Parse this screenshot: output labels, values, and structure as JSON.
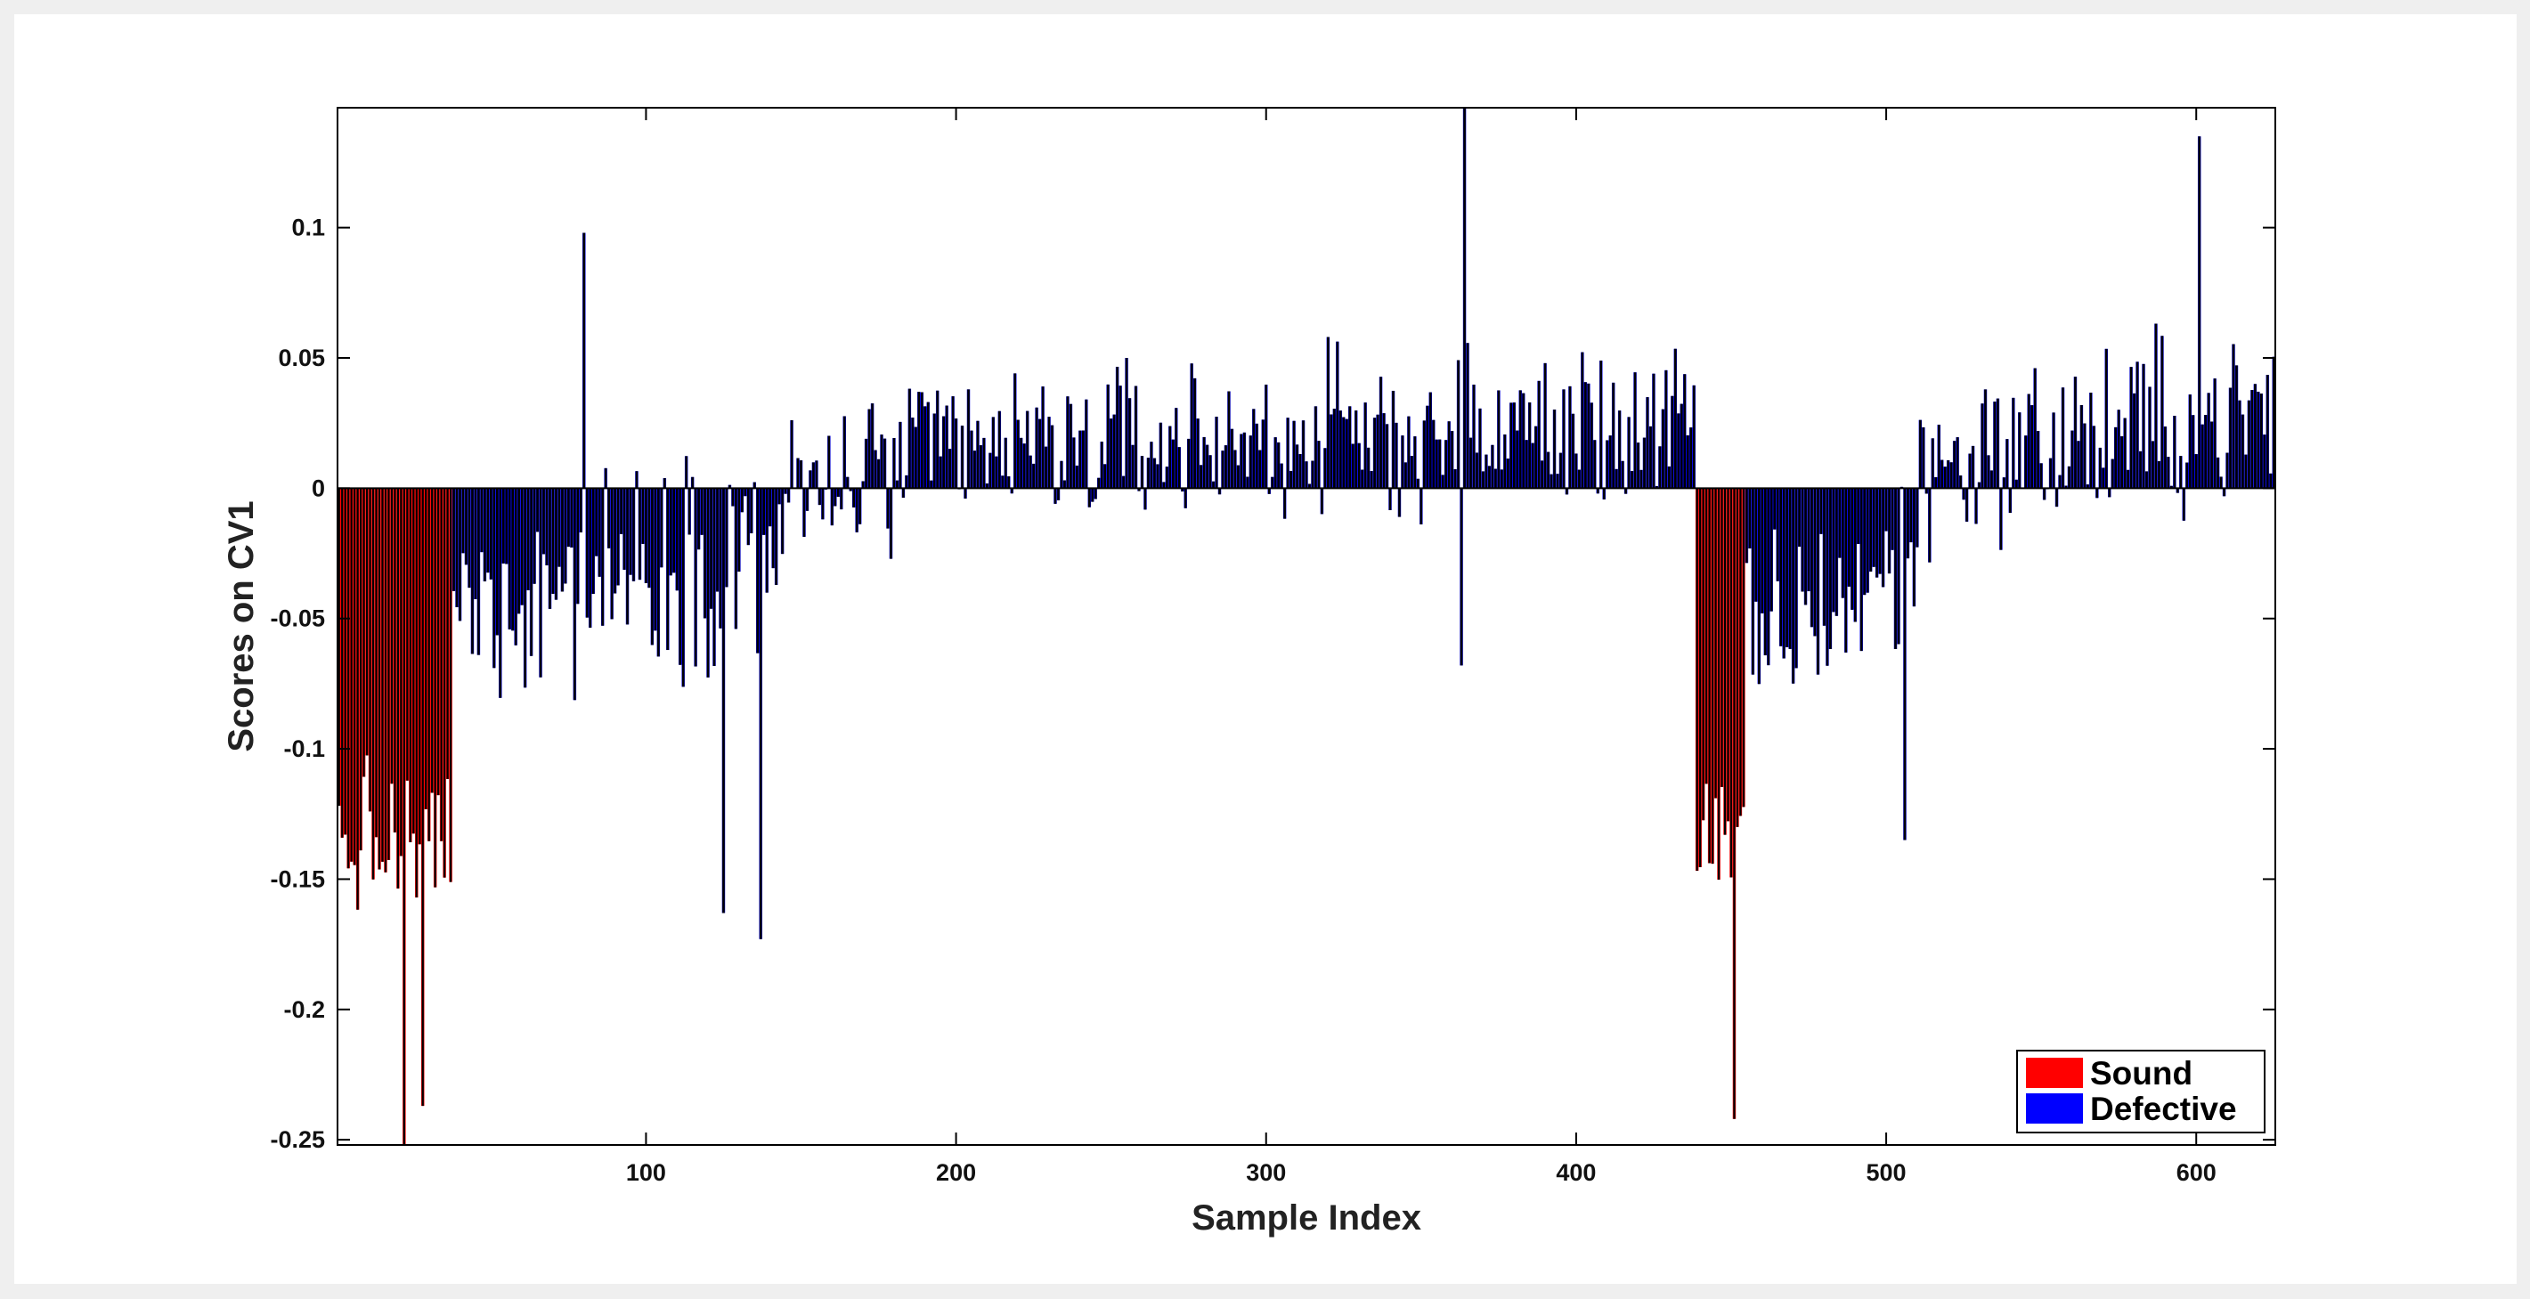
{
  "chart_data": {
    "type": "bar",
    "title": "",
    "xlabel": "Sample Index",
    "ylabel": "Scores on CV1",
    "xlim": [
      1,
      625
    ],
    "ylim": [
      -0.252,
      0.146
    ],
    "xticks": [
      100,
      200,
      300,
      400,
      500,
      600
    ],
    "yticks": [
      -0.25,
      -0.2,
      -0.15,
      -0.1,
      -0.05,
      0,
      0.05,
      0.1
    ],
    "ytick_labels": [
      "-0.25",
      "-0.2",
      "-0.15",
      "-0.1",
      "-0.05",
      "0",
      "0.05",
      "0.1"
    ],
    "grid": false,
    "legend_position": "bottom-right",
    "bar_edge_color": "#000000",
    "series": [
      {
        "name": "Sound",
        "color": "#ff0000",
        "ranges": [
          [
            1,
            37
          ],
          [
            439,
            454
          ]
        ],
        "mean": [
          -0.137,
          -0.135
        ],
        "spread": [
          0.045,
          0.035
        ]
      },
      {
        "name": "Defective",
        "color": "#0000ff",
        "segments": [
          {
            "range": [
              38,
              60
            ],
            "mean_start": -0.045,
            "mean_end": -0.04,
            "spread": 0.055
          },
          {
            "range": [
              61,
              145
            ],
            "mean_start": -0.04,
            "mean_end": -0.02,
            "spread": 0.06
          },
          {
            "range": [
              146,
              200
            ],
            "mean_start": -0.005,
            "mean_end": 0.015,
            "spread": 0.05
          },
          {
            "range": [
              201,
              438
            ],
            "mean_start": 0.015,
            "mean_end": 0.025,
            "spread": 0.045
          },
          {
            "range": [
              455,
              510
            ],
            "mean_start": -0.06,
            "mean_end": -0.03,
            "spread": 0.055
          },
          {
            "range": [
              511,
              625
            ],
            "mean_start": 0.01,
            "mean_end": 0.03,
            "spread": 0.05
          }
        ],
        "highlight_points": [
          {
            "x": 80,
            "y": 0.098
          },
          {
            "x": 137,
            "y": -0.173
          },
          {
            "x": 125,
            "y": -0.163
          },
          {
            "x": 364,
            "y": 0.146
          },
          {
            "x": 363,
            "y": -0.068
          },
          {
            "x": 451,
            "y": -0.242
          },
          {
            "x": 601,
            "y": 0.135
          },
          {
            "x": 506,
            "y": -0.135
          },
          {
            "x": 22,
            "y": -0.252
          },
          {
            "x": 28,
            "y": -0.237
          }
        ]
      }
    ]
  }
}
